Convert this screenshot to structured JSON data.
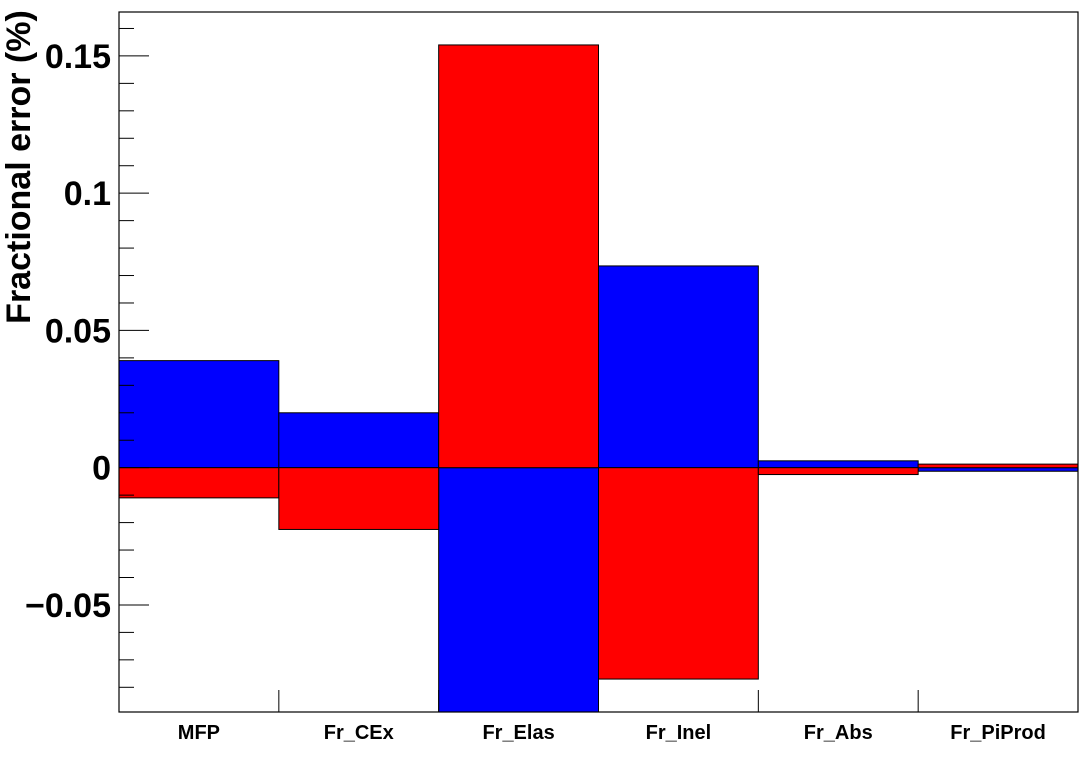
{
  "chart_data": {
    "type": "bar",
    "title": "",
    "xlabel": "",
    "ylabel": "Fractional error  (%)",
    "categories": [
      "MFP",
      "Fr_CEx",
      "Fr_Elas",
      "Fr_Inel",
      "Fr_Abs",
      "Fr_PiProd"
    ],
    "ylim": [
      -0.089,
      0.166
    ],
    "yticks": [
      {
        "value": -0.05,
        "label": "−0.05"
      },
      {
        "value": 0,
        "label": "0"
      },
      {
        "value": 0.05,
        "label": "0.05"
      },
      {
        "value": 0.1,
        "label": "0.1"
      },
      {
        "value": 0.15,
        "label": "0.15"
      }
    ],
    "grid": false,
    "legend": "none",
    "series": [
      {
        "color": "#0000ff",
        "values": [
          0.039,
          0.02,
          -0.089,
          0.0735,
          0.0025,
          -0.0013
        ]
      },
      {
        "color": "#ff0000",
        "values": [
          -0.011,
          -0.0225,
          0.154,
          -0.077,
          -0.0025,
          0.0013
        ]
      }
    ]
  }
}
